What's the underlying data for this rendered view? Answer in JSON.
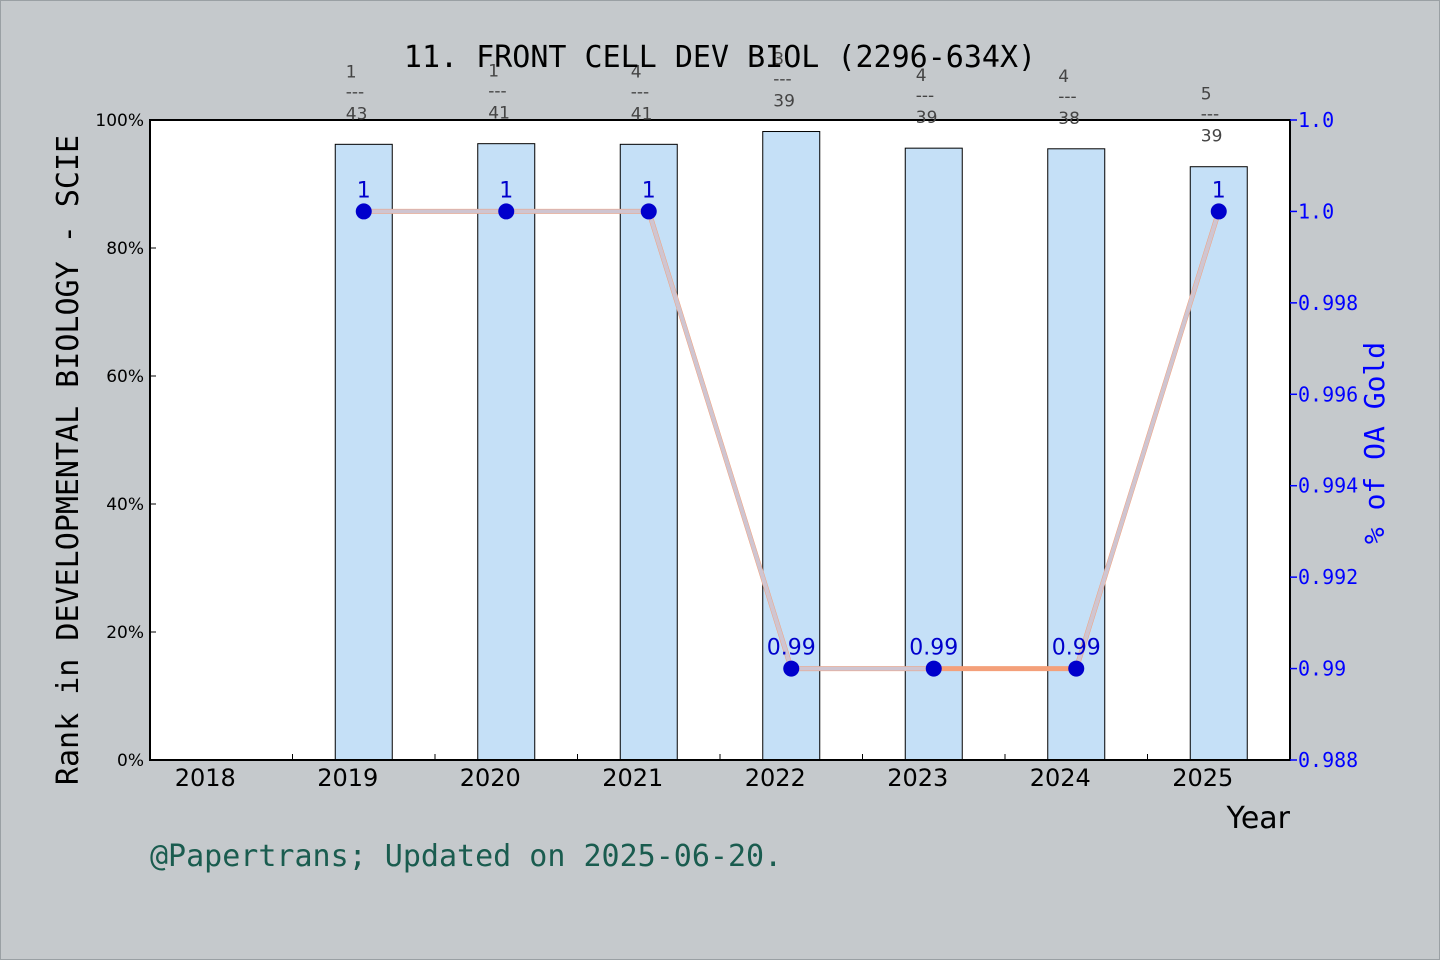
{
  "chart_data": {
    "type": "bar",
    "title": "11. FRONT CELL DEV BIOL (2296-634X)",
    "xlabel": "Year",
    "ylabel_left": "Rank in DEVELOPMENTAL BIOLOGY - SCIE",
    "ylabel_right": "% of OA Gold",
    "categories": [
      "2018",
      "2019",
      "2020",
      "2021",
      "2022",
      "2023",
      "2024",
      "2025"
    ],
    "left_ylim": [
      0,
      100
    ],
    "left_ticks": [
      "0%",
      "20%",
      "40%",
      "60%",
      "80%",
      "100%"
    ],
    "right_ylim": [
      0.988,
      1.002
    ],
    "right_ticks": [
      "0.988",
      "0.99",
      "0.992",
      "0.994",
      "0.996",
      "0.998",
      "1.0",
      "1.0"
    ],
    "bars": [
      {
        "year": "2019",
        "value": 96.2,
        "rank": "1",
        "total": "43"
      },
      {
        "year": "2020",
        "value": 96.3,
        "rank": "1",
        "total": "41"
      },
      {
        "year": "2021",
        "value": 96.2,
        "rank": "4",
        "total": "41"
      },
      {
        "year": "2022",
        "value": 98.2,
        "rank": "3",
        "total": "39"
      },
      {
        "year": "2023",
        "value": 95.6,
        "rank": "4",
        "total": "39"
      },
      {
        "year": "2024",
        "value": 95.5,
        "rank": "4",
        "total": "38"
      },
      {
        "year": "2025",
        "value": 92.7,
        "rank": "5",
        "total": "39"
      }
    ],
    "oa_series": [
      {
        "year": "2019",
        "value": 1.0,
        "label": "1"
      },
      {
        "year": "2020",
        "value": 1.0,
        "label": "1"
      },
      {
        "year": "2021",
        "value": 1.0,
        "label": "1"
      },
      {
        "year": "2022",
        "value": 0.99,
        "label": "0.99"
      },
      {
        "year": "2023",
        "value": 0.99,
        "label": "0.99"
      },
      {
        "year": "2024",
        "value": 0.99,
        "label": "0.99"
      },
      {
        "year": "2025",
        "value": 1.0,
        "label": "1"
      }
    ],
    "rank_separator": "---",
    "colors": {
      "bar_fill": "#c5e0f7",
      "bar_stroke": "#000000",
      "line_main": "#f4a07a",
      "line_overlay": "#c8cbe0",
      "marker": "#0000cc",
      "right_axis": "#0000ff"
    }
  },
  "footer": "@Papertrans; Updated on 2025-06-20."
}
